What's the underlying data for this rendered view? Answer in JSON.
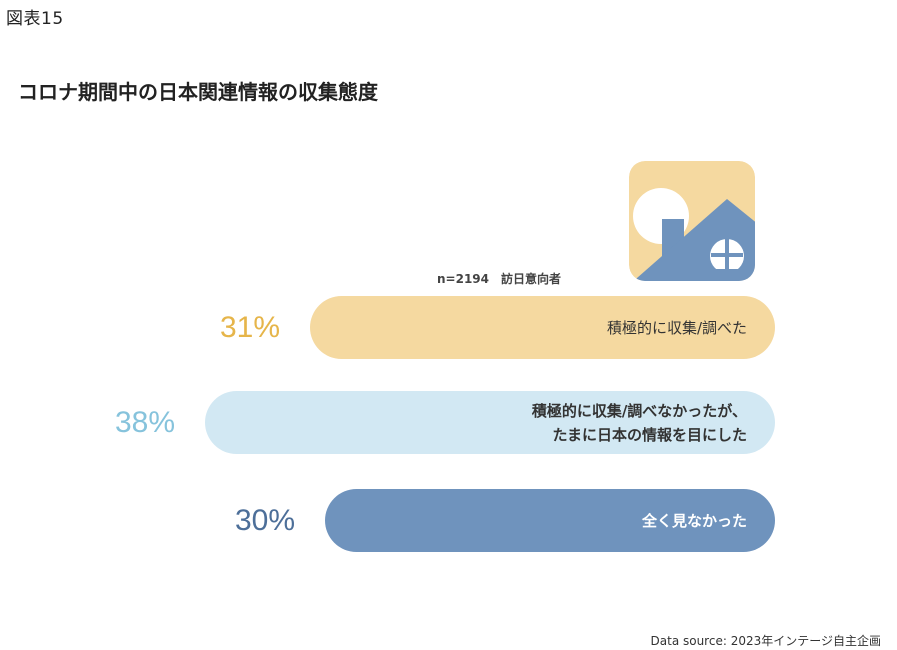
{
  "figure_label": "図表15",
  "title": "コロナ期間中の日本関連情報の収集態度",
  "sample_note": "n=2194　訪日意向者",
  "source": "Data source: 2023年インテージ自主企画",
  "icon": "house-with-sun-icon",
  "colors": {
    "icon_bg": "#f5d9a0",
    "icon_house": "#6f93bd",
    "icon_sun": "#ffffff"
  },
  "chart_data": {
    "type": "bar",
    "orientation": "horizontal",
    "categories": [
      "積極的に収集/調べた",
      "積極的に収集/調べなかったが、\nたまに日本の情報を目にした",
      "全く見なかった"
    ],
    "values": [
      31,
      38,
      30
    ],
    "value_labels": [
      "31%",
      "38%",
      "30%"
    ],
    "unit": "%",
    "colors": [
      "#f5d9a0",
      "#d2e8f3",
      "#6f93bd"
    ],
    "label_colors": [
      "#333333",
      "#333333",
      "#ffffff"
    ],
    "label_bold": [
      false,
      true,
      true
    ],
    "pct_colors": [
      "#e6b54a",
      "#86c3dc",
      "#4d6f99"
    ]
  }
}
